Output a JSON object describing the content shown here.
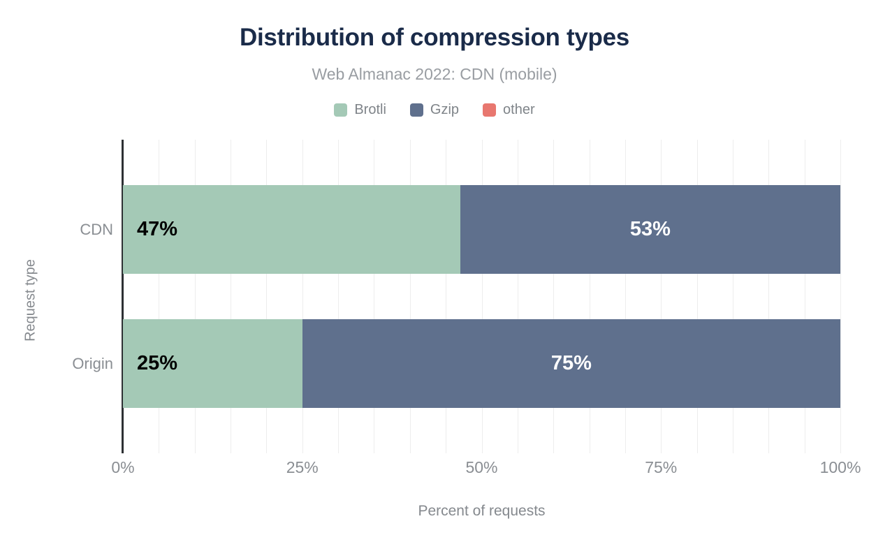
{
  "chart_data": {
    "type": "bar",
    "orientation": "horizontal",
    "stacked": true,
    "title": "Distribution of compression types",
    "subtitle": "Web Almanac 2022: CDN (mobile)",
    "xlabel": "Percent of requests",
    "ylabel": "Request type",
    "categories": [
      "CDN",
      "Origin"
    ],
    "series": [
      {
        "name": "Brotli",
        "color": "#a4c9b6",
        "label_color": "#000000",
        "label_align": "left",
        "values": [
          47,
          25
        ]
      },
      {
        "name": "Gzip",
        "color": "#5f708d",
        "label_color": "#ffffff",
        "label_align": "center",
        "values": [
          53,
          75
        ]
      },
      {
        "name": "other",
        "color": "#e8776f",
        "label_color": "#000000",
        "label_align": "center",
        "values": [
          0,
          0
        ]
      }
    ],
    "data_label_format": "{value}%",
    "x_ticks": [
      "0%",
      "25%",
      "50%",
      "75%",
      "100%"
    ],
    "xlim": [
      0,
      100
    ],
    "grid": "vertical minor gridlines every 5%",
    "legend_position": "top"
  },
  "colors": {
    "background": "#ffffff",
    "title": "#1a2b49",
    "subtitle": "#999da2",
    "legend_text": "#7f8489",
    "tick_text": "#8a8e93",
    "axis_title": "#85898e",
    "axis_line": "#2d3033",
    "gridline": "#ededed"
  }
}
